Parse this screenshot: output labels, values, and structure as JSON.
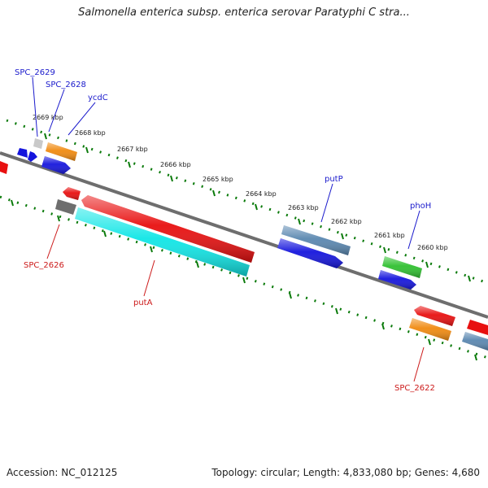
{
  "title": "Salmonella enterica subsp. enterica serovar Paratyphi C stra...",
  "footer": {
    "accession": "Accession: NC_012125",
    "summary": "Topology: circular; Length: 4,833,080 bp; Genes: 4,680"
  },
  "scale_labels": [
    "2669 kbp",
    "2668 kbp",
    "2667 kbp",
    "2666 kbp",
    "2665 kbp",
    "2664 kbp",
    "2663 kbp",
    "2662 kbp",
    "2661 kbp",
    "2660 kbp"
  ],
  "gene_labels": {
    "top": [
      "SPC_2629",
      "SPC_2628",
      "ycdC",
      "putP",
      "phoH"
    ],
    "bottom": [
      "SPC_2626",
      "putA",
      "SPC_2622"
    ]
  },
  "colors": {
    "label_top": "#1a1acc",
    "label_bottom": "#cc1a1a",
    "backbone": "#777777",
    "tick": "#0a7a0a",
    "red": "#e81010",
    "blue": "#1515dd",
    "orange": "#f08a10",
    "cyan": "#10e6e6",
    "green": "#30c030",
    "steel": "#5a87b0",
    "gray": "#777777",
    "lightgray": "#c9c9c9"
  }
}
